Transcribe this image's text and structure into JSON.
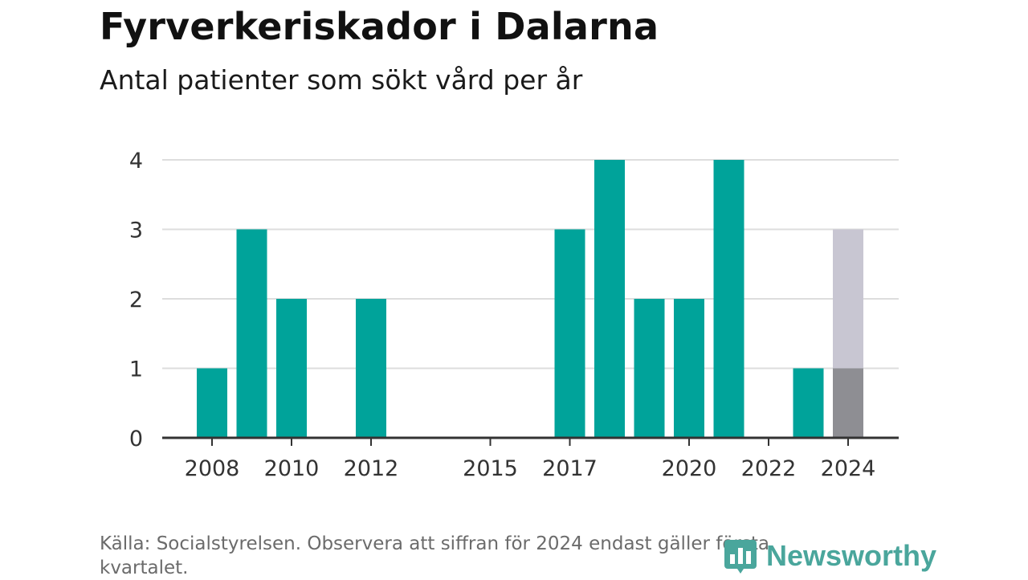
{
  "title": "Fyrverkeriskador i Dalarna",
  "subtitle": "Antal patienter som sökt vård per år",
  "footer": "Källa: Socialstyrelsen. Observera att siffran för 2024 endast gäller första kvartalet.",
  "brand": {
    "name": "Newsworthy",
    "icon": "bar-chart-icon",
    "color": "#4aa69c"
  },
  "colors": {
    "bar": "#00a39a",
    "bar_partial": "#8e8e93",
    "bar_projection": "#c8c6d2",
    "grid": "#dddddd",
    "axis": "#333333"
  },
  "chart_data": {
    "type": "bar",
    "x": [
      2008,
      2009,
      2010,
      2011,
      2012,
      2013,
      2014,
      2015,
      2016,
      2017,
      2018,
      2019,
      2020,
      2021,
      2022,
      2023,
      2024
    ],
    "values": [
      1,
      3,
      2,
      0,
      2,
      0,
      0,
      0,
      0,
      3,
      4,
      2,
      2,
      4,
      0,
      1,
      1
    ],
    "partial_year": 2024,
    "projection": {
      "x": 2024,
      "value": 3
    },
    "x_tick_labels": [
      "2008",
      "2010",
      "2012",
      "2015",
      "2017",
      "2020",
      "2022",
      "2024"
    ],
    "y_ticks": [
      0,
      1,
      2,
      3,
      4
    ],
    "ylim": [
      0,
      4
    ],
    "grid": true,
    "title": "Fyrverkeriskador i Dalarna",
    "xlabel": "",
    "ylabel": ""
  }
}
